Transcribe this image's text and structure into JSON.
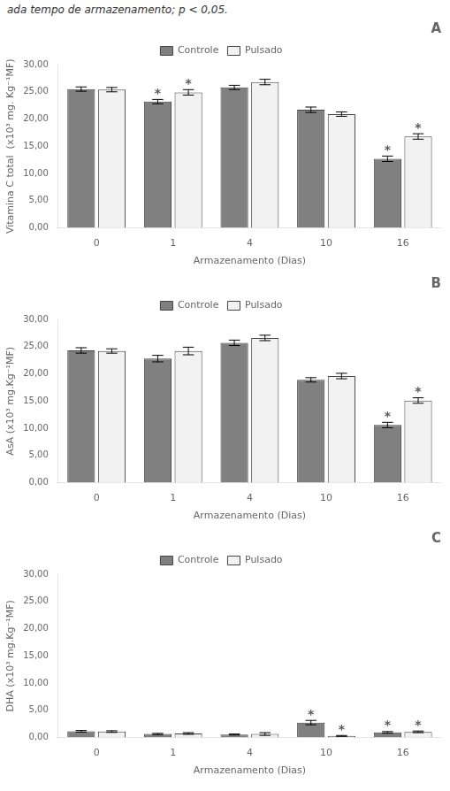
{
  "chart_data": [
    {
      "type": "bar",
      "title": "A",
      "subtitle": "ada tempo de armazenamento; p < 0,05.",
      "x_label": "Armazenamento (Dias)",
      "y_label": "Vitamina C total  (x10³ mg. Kg⁻¹MF)",
      "categories": [
        "0",
        "1",
        "4",
        "10",
        "16"
      ],
      "series": [
        {
          "name": "Controle",
          "color": "#808080",
          "values": [
            25.5,
            23.2,
            25.8,
            21.7,
            12.7
          ],
          "errors": [
            0.4,
            0.4,
            0.4,
            0.5,
            0.5
          ]
        },
        {
          "name": "Pulsado",
          "color": "#f2f2f2",
          "values": [
            25.4,
            24.9,
            26.8,
            20.9,
            16.8
          ],
          "errors": [
            0.4,
            0.5,
            0.5,
            0.4,
            0.5
          ]
        }
      ],
      "annotations": [
        {
          "text": "*",
          "category": "1",
          "series": "Controle"
        },
        {
          "text": "*",
          "category": "1",
          "series": "Pulsado"
        },
        {
          "text": "*",
          "category": "16",
          "series": "Controle"
        },
        {
          "text": "*",
          "category": "16",
          "series": "Pulsado"
        }
      ],
      "ylim": [
        0,
        30
      ],
      "yticks": [
        {
          "value": 0,
          "label": "0,00"
        },
        {
          "value": 5,
          "label": "5,00"
        },
        {
          "value": 10,
          "label": "10,00"
        },
        {
          "value": 15,
          "label": "15,00"
        },
        {
          "value": 20,
          "label": "20,00"
        },
        {
          "value": 25,
          "label": "25,00"
        },
        {
          "value": 30,
          "label": "30,00"
        }
      ],
      "grid": false,
      "legend": "top"
    },
    {
      "type": "bar",
      "title": "B",
      "x_label": "Armazenamento (Dias)",
      "y_label": "AsA (x10³ mg.Kg⁻¹MF)",
      "categories": [
        "0",
        "1",
        "4",
        "10",
        "16"
      ],
      "series": [
        {
          "name": "Controle",
          "color": "#808080",
          "values": [
            24.3,
            22.8,
            25.7,
            18.9,
            10.6
          ],
          "errors": [
            0.5,
            0.6,
            0.5,
            0.4,
            0.5
          ]
        },
        {
          "name": "Pulsado",
          "color": "#f2f2f2",
          "values": [
            24.2,
            24.2,
            26.6,
            19.6,
            15.1
          ],
          "errors": [
            0.4,
            0.7,
            0.5,
            0.5,
            0.5
          ]
        }
      ],
      "annotations": [
        {
          "text": "*",
          "category": "16",
          "series": "Controle"
        },
        {
          "text": "*",
          "category": "16",
          "series": "Pulsado"
        }
      ],
      "ylim": [
        0,
        30
      ],
      "yticks": [
        {
          "value": 0,
          "label": "0,00"
        },
        {
          "value": 5,
          "label": "5,00"
        },
        {
          "value": 10,
          "label": "10,00"
        },
        {
          "value": 15,
          "label": "15,00"
        },
        {
          "value": 20,
          "label": "20,00"
        },
        {
          "value": 25,
          "label": "25,00"
        },
        {
          "value": 30,
          "label": "30,00"
        }
      ],
      "grid": false,
      "legend": "top"
    },
    {
      "type": "bar",
      "title": "C",
      "x_label": "Armazenamento (Dias)",
      "y_label": "DHA (x10³ mg.Kg⁻¹MF)",
      "categories": [
        "0",
        "1",
        "4",
        "10",
        "16"
      ],
      "series": [
        {
          "name": "Controle",
          "color": "#808080",
          "values": [
            1.15,
            0.65,
            0.55,
            2.75,
            0.95
          ],
          "errors": [
            0.15,
            0.12,
            0.1,
            0.4,
            0.15
          ]
        },
        {
          "name": "Pulsado",
          "color": "#f2f2f2",
          "values": [
            1.1,
            0.75,
            0.65,
            0.3,
            1.05
          ],
          "errors": [
            0.15,
            0.15,
            0.25,
            0.08,
            0.15
          ]
        }
      ],
      "annotations": [
        {
          "text": "*",
          "category": "10",
          "series": "Controle"
        },
        {
          "text": "*",
          "category": "10",
          "series": "Pulsado"
        },
        {
          "text": "*",
          "category": "16",
          "series": "Controle"
        },
        {
          "text": "*",
          "category": "16",
          "series": "Pulsado"
        }
      ],
      "ylim": [
        0,
        30
      ],
      "yticks": [
        {
          "value": 0,
          "label": "0,00"
        },
        {
          "value": 5,
          "label": "5,00"
        },
        {
          "value": 10,
          "label": "10,00"
        },
        {
          "value": 15,
          "label": "15,00"
        },
        {
          "value": 20,
          "label": "20,00"
        },
        {
          "value": 25,
          "label": "25,00"
        },
        {
          "value": 30,
          "label": "30,00"
        }
      ],
      "grid": false,
      "legend": "top"
    }
  ]
}
